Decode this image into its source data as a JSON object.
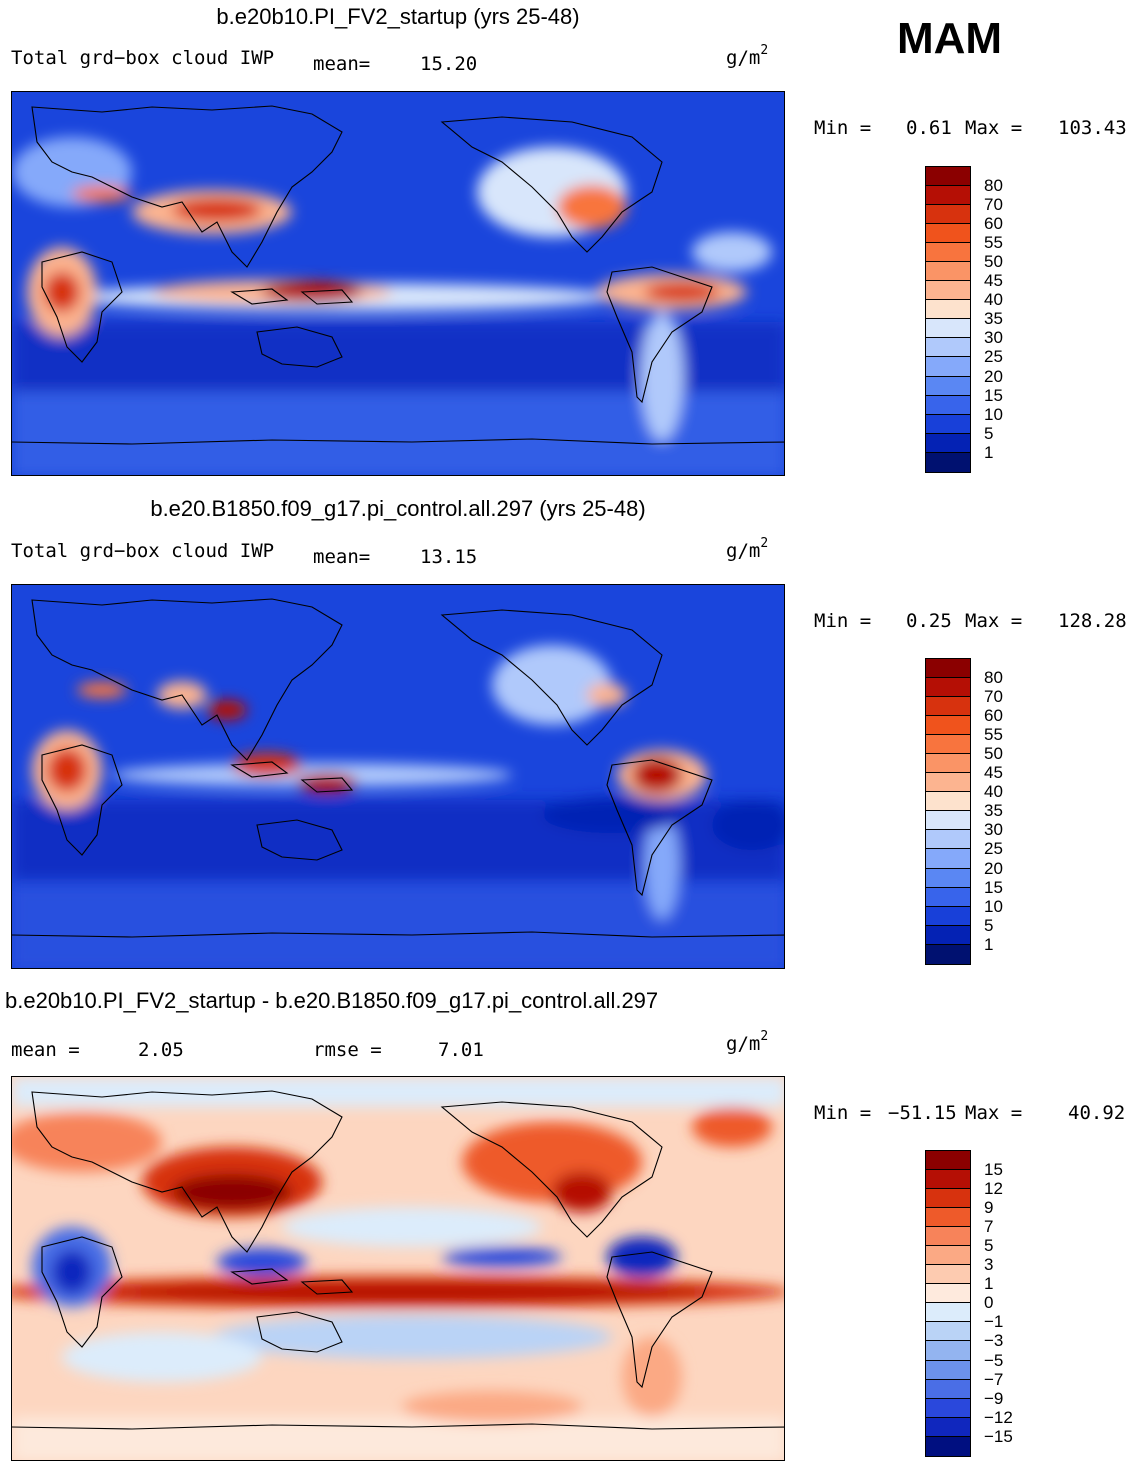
{
  "season": "MAM",
  "panels": [
    {
      "title": "b.e20b10.PI_FV2_startup (yrs 25-48)",
      "left_label": "Total grd−box cloud IWP",
      "mean_label": "mean=",
      "mean_value": "15.20",
      "units": "g/m",
      "units_exp": "2",
      "min_label": "Min =",
      "min_value": "0.61",
      "max_label": "Max =",
      "max_value": "103.43",
      "colorbar_labels": [
        "80",
        "70",
        "60",
        "55",
        "50",
        "45",
        "40",
        "35",
        "30",
        "25",
        "20",
        "15",
        "10",
        "5",
        "1"
      ],
      "colorbar_colors": [
        "#8b0000",
        "#b50f05",
        "#d7320e",
        "#f0531c",
        "#f8743e",
        "#fa9466",
        "#fcb490",
        "#fde2cd",
        "#d8e6fb",
        "#b0c9fb",
        "#85a9fa",
        "#5a87f3",
        "#3864eb",
        "#1840d9",
        "#0422b4",
        "#001170"
      ]
    },
    {
      "title": "b.e20.B1850.f09_g17.pi_control.all.297 (yrs 25-48)",
      "left_label": "Total grd−box cloud IWP",
      "mean_label": "mean=",
      "mean_value": "13.15",
      "units": "g/m",
      "units_exp": "2",
      "min_label": "Min =",
      "min_value": "0.25",
      "max_label": "Max =",
      "max_value": "128.28",
      "colorbar_labels": [
        "80",
        "70",
        "60",
        "55",
        "50",
        "45",
        "40",
        "35",
        "30",
        "25",
        "20",
        "15",
        "10",
        "5",
        "1"
      ],
      "colorbar_colors": [
        "#8b0000",
        "#b50f05",
        "#d7320e",
        "#f0531c",
        "#f8743e",
        "#fa9466",
        "#fcb490",
        "#fde2cd",
        "#d8e6fb",
        "#b0c9fb",
        "#85a9fa",
        "#5a87f3",
        "#3864eb",
        "#1840d9",
        "#0422b4",
        "#001170"
      ]
    },
    {
      "title": "b.e20b10.PI_FV2_startup - b.e20.B1850.f09_g17.pi_control.all.297",
      "mean_label": "mean =",
      "mean_value": "2.05",
      "rmse_label": "rmse =",
      "rmse_value": "7.01",
      "units": "g/m",
      "units_exp": "2",
      "min_label": "Min =",
      "min_value": "−51.15",
      "max_label": "Max =",
      "max_value": "40.92",
      "colorbar_labels": [
        "15",
        "12",
        "9",
        "7",
        "5",
        "3",
        "1",
        "0",
        "−1",
        "−3",
        "−5",
        "−7",
        "−9",
        "−12",
        "−15"
      ],
      "colorbar_colors": [
        "#8b0000",
        "#b50f05",
        "#d7320e",
        "#ee5a2a",
        "#f7835a",
        "#fba984",
        "#fdcbb0",
        "#feeadd",
        "#dcecfb",
        "#bad3f6",
        "#93b4f0",
        "#6c92ea",
        "#4a6ee6",
        "#2a48dc",
        "#1027be",
        "#000f80"
      ]
    }
  ]
}
